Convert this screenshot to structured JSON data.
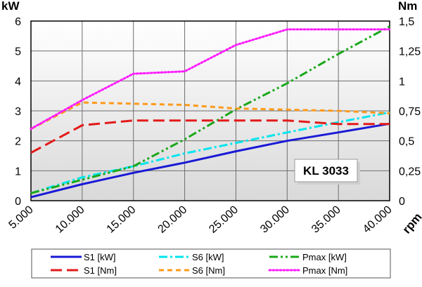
{
  "chart_data": {
    "type": "line",
    "model_label": "KL 3033",
    "x_unit_label": "rpm",
    "left_unit_label": "kW",
    "right_unit_label": "Nm",
    "x": [
      5000,
      10000,
      15000,
      20000,
      25000,
      30000,
      35000,
      40000
    ],
    "x_tick_labels": [
      "5.000",
      "10.000",
      "15.000",
      "20.000",
      "25.000",
      "30.000",
      "35.000",
      "40.000"
    ],
    "xlim": [
      5000,
      40000
    ],
    "ylim_left": [
      0,
      6
    ],
    "ylim_right": [
      0,
      1.5
    ],
    "left_tick_values": [
      0,
      1,
      2,
      3,
      4,
      5,
      6
    ],
    "left_tick_labels": [
      "0",
      "1",
      "2",
      "3",
      "4",
      "5",
      "6"
    ],
    "right_tick_values": [
      0,
      0.25,
      0.5,
      0.75,
      1,
      1.25,
      1.5
    ],
    "right_tick_labels": [
      "0",
      "0,25",
      "0,5",
      "0,75",
      "1",
      "1,25",
      "1,5"
    ],
    "grid": true,
    "legend_position": "bottom",
    "series": [
      {
        "name": "S1 [kW]",
        "axis": "left",
        "color": "#1a1ad6",
        "style": "solid",
        "values": [
          0.12,
          0.55,
          0.93,
          1.27,
          1.65,
          2.0,
          2.28,
          2.57
        ]
      },
      {
        "name": "S6 [kW]",
        "axis": "left",
        "color": "#00e5ee",
        "style": "dashdot",
        "values": [
          0.25,
          0.78,
          1.15,
          1.58,
          1.93,
          2.28,
          2.62,
          2.95
        ]
      },
      {
        "name": "Pmax [kW]",
        "axis": "left",
        "color": "#1aa81a",
        "style": "dashdotdot",
        "values": [
          0.25,
          0.7,
          1.15,
          2.05,
          3.05,
          3.92,
          4.9,
          5.82
        ]
      },
      {
        "name": "S1 [Nm]",
        "axis": "right",
        "color": "#e31a1a",
        "style": "longdash",
        "values": [
          0.4,
          0.63,
          0.67,
          0.67,
          0.67,
          0.67,
          0.64,
          0.64
        ]
      },
      {
        "name": "S6 [Nm]",
        "axis": "right",
        "color": "#ff9a1a",
        "style": "dashed",
        "values": [
          0.6,
          0.82,
          0.81,
          0.8,
          0.77,
          0.76,
          0.75,
          0.73
        ]
      },
      {
        "name": "Pmax [Nm]",
        "axis": "right",
        "color": "#ff1aff",
        "style": "dotted",
        "values": [
          0.6,
          0.84,
          1.06,
          1.08,
          1.3,
          1.43,
          1.43,
          1.43
        ]
      }
    ]
  }
}
